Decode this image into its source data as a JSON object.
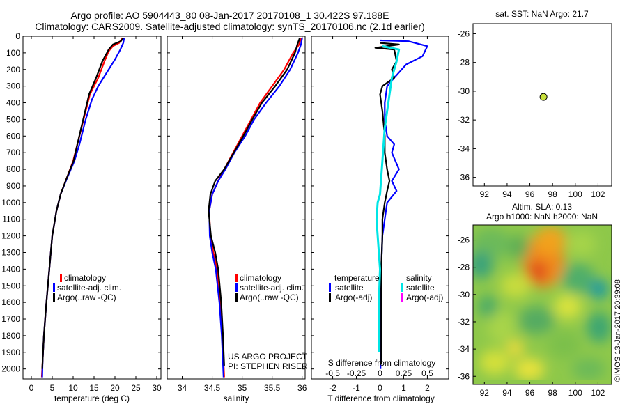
{
  "title_line1": "Argo profile: AO 5904443_80 08-Jan-2017 20170108_1 30.422S 97.188E",
  "title_line2": "Climatology: CARS2009. Satellite-adjusted climatology: synTS_20170106.nc (2.1d earlier)",
  "side_label": "©IMOS 13-Jan-2017 20:39:08",
  "colors": {
    "climatology": "#ff0000",
    "satellite": "#0000ff",
    "argo": "#000000",
    "salinity_sat": "#00e5e5",
    "salinity_argo": "#ff00ff",
    "marker": "#c8e03c"
  },
  "chart_data": [
    {
      "type": "line",
      "id": "temperature",
      "xlabel": "temperature (deg C)",
      "xticks": [
        0,
        5,
        10,
        15,
        20,
        25,
        30
      ],
      "xlim": [
        -2,
        31
      ],
      "ylim": [
        0,
        2060
      ],
      "yticks": [
        0,
        100,
        200,
        300,
        400,
        500,
        600,
        700,
        800,
        900,
        1000,
        1100,
        1200,
        1300,
        1400,
        1500,
        1600,
        1700,
        1800,
        1900,
        2000
      ],
      "legend": [
        "climatology",
        "satellite-adj. clim.",
        "Argo(..raw -QC)"
      ],
      "series": [
        {
          "name": "climatology",
          "color": "#ff0000",
          "points": [
            [
              21.8,
              10
            ],
            [
              21,
              40
            ],
            [
              19.5,
              60
            ],
            [
              18.5,
              90
            ],
            [
              17.5,
              150
            ],
            [
              16,
              250
            ],
            [
              14,
              350
            ],
            [
              12.5,
              500
            ],
            [
              11,
              650
            ],
            [
              10,
              750
            ],
            [
              8.5,
              850
            ],
            [
              7,
              950
            ],
            [
              6,
              1050
            ],
            [
              5,
              1200
            ],
            [
              4.3,
              1400
            ],
            [
              3.6,
              1600
            ],
            [
              3,
              1800
            ],
            [
              2.7,
              1950
            ],
            [
              2.5,
              2050
            ]
          ]
        },
        {
          "name": "satellite-adj. clim.",
          "color": "#0000ff",
          "points": [
            [
              22.2,
              10
            ],
            [
              22,
              40
            ],
            [
              21.3,
              80
            ],
            [
              20,
              140
            ],
            [
              18,
              220
            ],
            [
              16,
              300
            ],
            [
              14.5,
              380
            ],
            [
              13,
              500
            ],
            [
              11.5,
              650
            ],
            [
              10.3,
              750
            ],
            [
              8.6,
              850
            ],
            [
              7,
              950
            ],
            [
              6,
              1050
            ],
            [
              5,
              1200
            ],
            [
              4.3,
              1400
            ],
            [
              3.6,
              1600
            ],
            [
              3,
              1800
            ],
            [
              2.7,
              1950
            ],
            [
              2.6,
              2050
            ]
          ]
        },
        {
          "name": "Argo(..raw -QC)",
          "color": "#000000",
          "points": [
            [
              22,
              10
            ],
            [
              21.4,
              30
            ],
            [
              19.5,
              50
            ],
            [
              18.5,
              80
            ],
            [
              17,
              150
            ],
            [
              15.5,
              250
            ],
            [
              13.8,
              350
            ],
            [
              12.4,
              500
            ],
            [
              11,
              650
            ],
            [
              10.1,
              750
            ],
            [
              8.5,
              850
            ],
            [
              7,
              950
            ],
            [
              6,
              1050
            ],
            [
              5,
              1200
            ],
            [
              4.3,
              1400
            ],
            [
              3.6,
              1600
            ],
            [
              3,
              1800
            ],
            [
              2.7,
              1950
            ],
            [
              2.6,
              2000
            ]
          ]
        }
      ]
    },
    {
      "type": "line",
      "id": "salinity",
      "xlabel": "salinity",
      "xticks": [
        34,
        34.5,
        35,
        35.5,
        36
      ],
      "xlim": [
        33.75,
        36.05
      ],
      "ylim": [
        0,
        2060
      ],
      "legend": [
        "climatology",
        "satellite-adj. clim.",
        "Argo(..raw -QC)"
      ],
      "annotation": [
        "US ARGO PROJECT",
        "PI: STEPHEN RISER"
      ],
      "series": [
        {
          "name": "climatology",
          "color": "#ff0000",
          "points": [
            [
              35.98,
              10
            ],
            [
              35.95,
              50
            ],
            [
              35.85,
              100
            ],
            [
              35.7,
              200
            ],
            [
              35.5,
              300
            ],
            [
              35.3,
              400
            ],
            [
              35.15,
              500
            ],
            [
              35.0,
              600
            ],
            [
              34.85,
              700
            ],
            [
              34.7,
              800
            ],
            [
              34.6,
              870
            ],
            [
              34.5,
              950
            ],
            [
              34.45,
              1050
            ],
            [
              34.47,
              1200
            ],
            [
              34.52,
              1300
            ],
            [
              34.58,
              1400
            ],
            [
              34.63,
              1600
            ],
            [
              34.67,
              1800
            ],
            [
              34.7,
              2050
            ]
          ]
        },
        {
          "name": "satellite-adj. clim.",
          "color": "#0000ff",
          "points": [
            [
              36.0,
              10
            ],
            [
              35.98,
              50
            ],
            [
              35.93,
              100
            ],
            [
              35.8,
              200
            ],
            [
              35.62,
              300
            ],
            [
              35.4,
              400
            ],
            [
              35.2,
              500
            ],
            [
              35.05,
              600
            ],
            [
              34.87,
              700
            ],
            [
              34.72,
              800
            ],
            [
              34.6,
              870
            ],
            [
              34.5,
              950
            ],
            [
              34.45,
              1050
            ],
            [
              34.46,
              1200
            ],
            [
              34.5,
              1300
            ],
            [
              34.56,
              1400
            ],
            [
              34.62,
              1600
            ],
            [
              34.66,
              1800
            ],
            [
              34.69,
              2050
            ]
          ]
        },
        {
          "name": "Argo(..raw -QC)",
          "color": "#000000",
          "points": [
            [
              35.96,
              10
            ],
            [
              35.92,
              50
            ],
            [
              35.88,
              100
            ],
            [
              35.75,
              200
            ],
            [
              35.55,
              300
            ],
            [
              35.33,
              400
            ],
            [
              35.17,
              500
            ],
            [
              35.02,
              600
            ],
            [
              34.86,
              700
            ],
            [
              34.7,
              800
            ],
            [
              34.55,
              870
            ],
            [
              34.47,
              950
            ],
            [
              34.44,
              1050
            ],
            [
              34.48,
              1200
            ],
            [
              34.55,
              1300
            ],
            [
              34.6,
              1400
            ],
            [
              34.65,
              1600
            ],
            [
              34.68,
              1800
            ],
            [
              34.7,
              1980
            ]
          ]
        }
      ]
    },
    {
      "type": "line",
      "id": "difference",
      "xlabel": "T difference from climatology",
      "xlabel_top": "S difference from climatology",
      "xticks": [
        -2,
        -1,
        0,
        1,
        2
      ],
      "xticks_s": [
        "-0.5",
        "-0.25",
        "0",
        "0.25",
        "0.5"
      ],
      "xlim": [
        -2.9,
        2.9
      ],
      "ylim": [
        0,
        2060
      ],
      "legend_temperature": {
        "heading": "temperature",
        "items": [
          "satellite",
          "Argo(-adj)"
        ]
      },
      "legend_salinity": {
        "heading": "salinity",
        "items": [
          "satellite",
          "Argo(-adj)"
        ]
      },
      "series": [
        {
          "name": "T satellite",
          "color": "#0000ff",
          "points": [
            [
              0,
              25
            ],
            [
              1.2,
              30
            ],
            [
              2.0,
              60
            ],
            [
              1.8,
              120
            ],
            [
              1.1,
              170
            ],
            [
              0.6,
              250
            ],
            [
              0.3,
              300
            ],
            [
              0.2,
              400
            ],
            [
              0.2,
              500
            ],
            [
              0.3,
              600
            ],
            [
              0.6,
              650
            ],
            [
              0.5,
              700
            ],
            [
              0.8,
              800
            ],
            [
              0.5,
              870
            ],
            [
              0.7,
              930
            ],
            [
              0.3,
              1000
            ],
            [
              0.2,
              1100
            ],
            [
              0.1,
              1200
            ],
            [
              0.05,
              1400
            ],
            [
              0.03,
              1600
            ],
            [
              0.02,
              1800
            ],
            [
              0.02,
              2000
            ]
          ]
        },
        {
          "name": "T Argo(-adj)",
          "color": "#000000",
          "points": [
            [
              0,
              40
            ],
            [
              0.8,
              50
            ],
            [
              -0.2,
              70
            ],
            [
              0.6,
              80
            ],
            [
              0.7,
              150
            ],
            [
              0.5,
              200
            ],
            [
              0.6,
              250
            ],
            [
              0.1,
              300
            ],
            [
              0.0,
              350
            ],
            [
              0.1,
              450
            ],
            [
              0.2,
              600
            ],
            [
              0.2,
              700
            ],
            [
              0.3,
              800
            ],
            [
              0.4,
              870
            ],
            [
              0.3,
              930
            ],
            [
              0.2,
              1000
            ],
            [
              0.1,
              1100
            ],
            [
              0.1,
              1200
            ],
            [
              0.05,
              1400
            ],
            [
              0.05,
              1600
            ],
            [
              0.05,
              1800
            ],
            [
              0.05,
              1970
            ]
          ]
        },
        {
          "name": "S satellite",
          "color": "#00e5e5",
          "points": [
            [
              0.1,
              60
            ],
            [
              0.8,
              80
            ],
            [
              0.7,
              150
            ],
            [
              0.5,
              250
            ],
            [
              0.4,
              350
            ],
            [
              0.3,
              450
            ],
            [
              0.2,
              550
            ],
            [
              0.15,
              650
            ],
            [
              0.1,
              750
            ],
            [
              0.05,
              850
            ],
            [
              0.0,
              950
            ],
            [
              -0.1,
              1000
            ],
            [
              -0.15,
              1100
            ],
            [
              -0.1,
              1200
            ],
            [
              -0.05,
              1300
            ],
            [
              0.0,
              1400
            ],
            [
              -0.05,
              1600
            ],
            [
              -0.05,
              1800
            ],
            [
              -0.05,
              1900
            ]
          ]
        },
        {
          "name": "S Argo(-adj)",
          "color": "#ff00ff",
          "points": []
        }
      ]
    },
    {
      "type": "scatter",
      "id": "sst-map",
      "title": "sat. SST: NaN Argo: 21.7",
      "xticks": [
        92,
        94,
        96,
        98,
        100,
        102
      ],
      "yticks": [
        -26,
        -28,
        -30,
        -32,
        -34,
        -36
      ],
      "xlim": [
        91,
        103.2
      ],
      "ylim": [
        -36.6,
        -25.3
      ],
      "points": [
        [
          97.2,
          -30.4
        ]
      ]
    },
    {
      "type": "heatmap",
      "id": "sla-map",
      "title_line1": "Altim. SLA: 0.13",
      "title_line2": "Argo h1000: NaN h2000: NaN",
      "xticks": [
        92,
        94,
        96,
        98,
        100,
        102
      ],
      "yticks": [
        -26,
        -28,
        -30,
        -32,
        -34,
        -36
      ],
      "xlim": [
        91,
        103.2
      ],
      "ylim": [
        -36.6,
        -24.9
      ]
    }
  ]
}
